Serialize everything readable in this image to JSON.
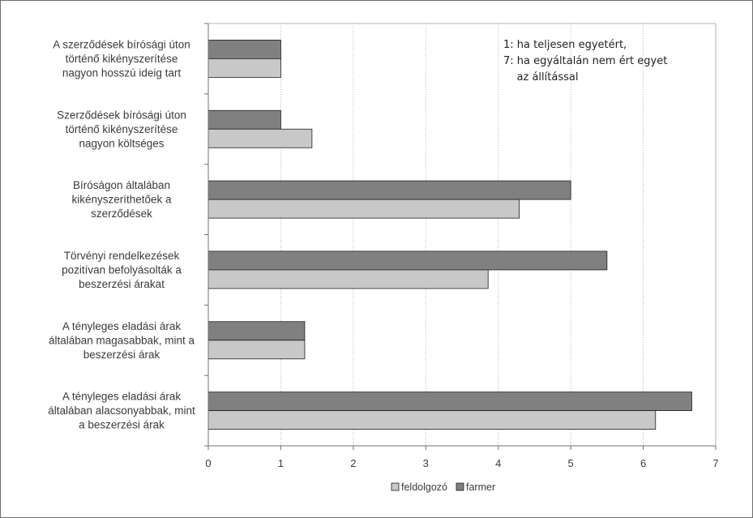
{
  "chart_data": {
    "type": "bar",
    "orientation": "horizontal",
    "categories": [
      [
        "A szerződések bírósági úton",
        "történő kikényszerítése",
        "nagyon hosszú ideig tart"
      ],
      [
        "Szerződések bírósági úton",
        "történő kikényszerítése",
        "nagyon költséges"
      ],
      [
        "Bíróságon általában",
        "kikényszeríthetőek a",
        "szerződések"
      ],
      [
        "Törvényi rendelkezések",
        "pozitívan befolyásolták a",
        "beszerzési árakat"
      ],
      [
        "A tényleges eladási árak",
        "általában magasabbak, mint a",
        "beszerzési árak"
      ],
      [
        "A tényleges eladási árak",
        "általában alacsonyabbak, mint",
        "a beszerzési árak"
      ]
    ],
    "series": [
      {
        "name": "farmer",
        "color": "#808080",
        "values": [
          1.0,
          1.0,
          5.0,
          5.5,
          1.33,
          6.67
        ]
      },
      {
        "name": "feldolgozó",
        "color": "#c8c8c8",
        "values": [
          1.0,
          1.43,
          4.29,
          3.86,
          1.33,
          6.17
        ]
      }
    ],
    "xlim": [
      0,
      7
    ],
    "xticks": [
      "0",
      "1",
      "2",
      "3",
      "4",
      "5",
      "6",
      "7"
    ],
    "grid": true,
    "legend": {
      "placement": "bottom",
      "entries": [
        {
          "label": "feldolgozó",
          "color": "#c8c8c8"
        },
        {
          "label": "farmer",
          "color": "#808080"
        }
      ]
    },
    "annotation": [
      "1: ha teljesen egyetért,",
      "7: ha egyáltalán nem ért egyet",
      "    az állítással"
    ]
  }
}
